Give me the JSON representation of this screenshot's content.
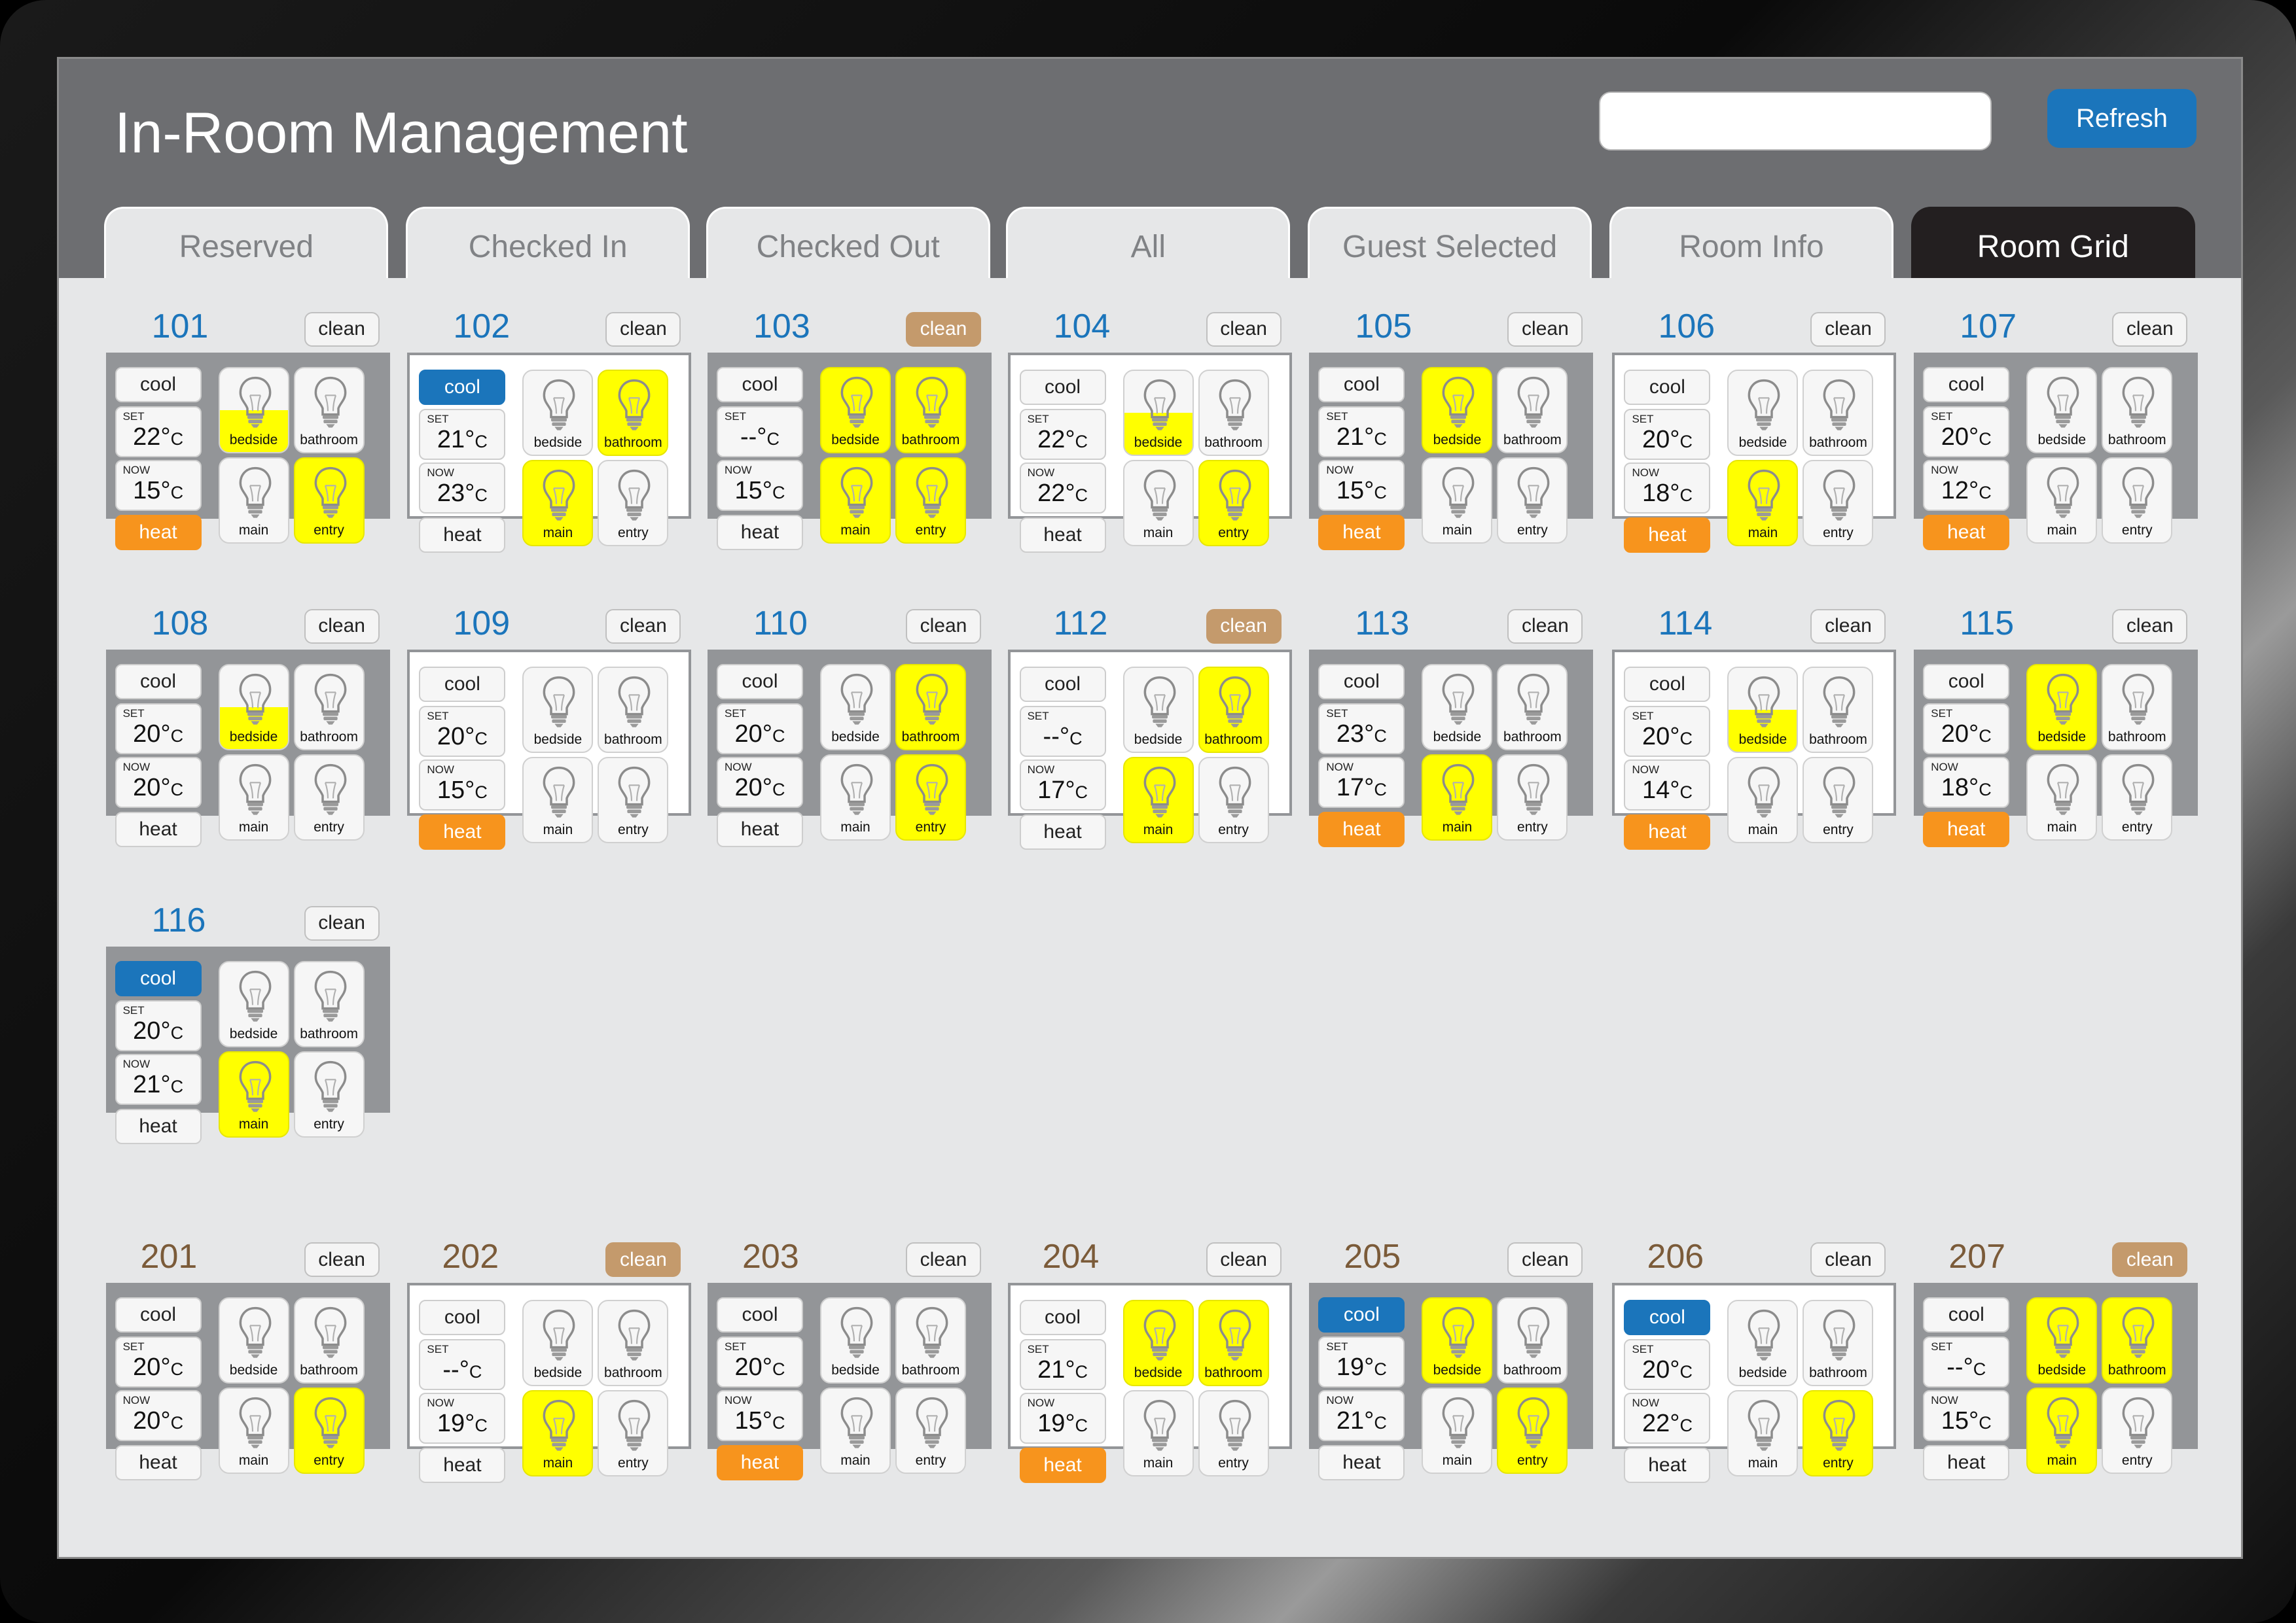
{
  "header": {
    "title": "In-Room Management",
    "search": {
      "value": "",
      "placeholder": ""
    },
    "refresh_label": "Refresh"
  },
  "tabs": [
    {
      "label": "Reserved",
      "active": false
    },
    {
      "label": "Checked In",
      "active": false
    },
    {
      "label": "Checked Out",
      "active": false
    },
    {
      "label": "All",
      "active": false
    },
    {
      "label": "Guest Selected",
      "active": false
    },
    {
      "label": "Room Info",
      "active": false
    },
    {
      "label": "Room Grid",
      "active": true
    }
  ],
  "labels": {
    "clean": "clean",
    "cool": "cool",
    "heat": "heat",
    "set": "SET",
    "now": "NOW",
    "deg": "°",
    "unit": "C",
    "lights": [
      "bedside",
      "bathroom",
      "main",
      "entry"
    ]
  },
  "colors": {
    "header": "#6d6e71",
    "accent_blue": "#1b75bb",
    "heat_orange": "#f7941d",
    "light_on": "#ffff00",
    "clean_active": "#c49a6c",
    "floor2_number": "#7b5b39"
  },
  "icons": {
    "light": "lightbulb-icon"
  },
  "rooms": [
    {
      "number": "101",
      "clean": false,
      "selected": false,
      "cool": false,
      "heat": true,
      "set": "22",
      "now": "15",
      "lights": [
        "half",
        "off",
        "off",
        "on"
      ]
    },
    {
      "number": "102",
      "clean": false,
      "selected": true,
      "cool": true,
      "heat": false,
      "set": "21",
      "now": "23",
      "lights": [
        "off",
        "on",
        "on",
        "off"
      ]
    },
    {
      "number": "103",
      "clean": true,
      "selected": false,
      "cool": false,
      "heat": false,
      "set": "--",
      "now": "15",
      "lights": [
        "on",
        "on",
        "on",
        "on"
      ]
    },
    {
      "number": "104",
      "clean": false,
      "selected": true,
      "cool": false,
      "heat": false,
      "set": "22",
      "now": "22",
      "lights": [
        "half",
        "off",
        "off",
        "on"
      ]
    },
    {
      "number": "105",
      "clean": false,
      "selected": false,
      "cool": false,
      "heat": true,
      "set": "21",
      "now": "15",
      "lights": [
        "on",
        "off",
        "off",
        "off"
      ]
    },
    {
      "number": "106",
      "clean": false,
      "selected": true,
      "cool": false,
      "heat": true,
      "set": "20",
      "now": "18",
      "lights": [
        "off",
        "off",
        "on",
        "off"
      ]
    },
    {
      "number": "107",
      "clean": false,
      "selected": false,
      "cool": false,
      "heat": true,
      "set": "20",
      "now": "12",
      "lights": [
        "off",
        "off",
        "off",
        "off"
      ]
    },
    {
      "number": "108",
      "clean": false,
      "selected": false,
      "cool": false,
      "heat": false,
      "set": "20",
      "now": "20",
      "lights": [
        "half",
        "off",
        "off",
        "off"
      ]
    },
    {
      "number": "109",
      "clean": false,
      "selected": true,
      "cool": false,
      "heat": true,
      "set": "20",
      "now": "15",
      "lights": [
        "off",
        "off",
        "off",
        "off"
      ]
    },
    {
      "number": "110",
      "clean": false,
      "selected": false,
      "cool": false,
      "heat": false,
      "set": "20",
      "now": "20",
      "lights": [
        "off",
        "on",
        "off",
        "on"
      ]
    },
    {
      "number": "112",
      "clean": true,
      "selected": true,
      "cool": false,
      "heat": false,
      "set": "--",
      "now": "17",
      "lights": [
        "off",
        "on",
        "on",
        "off"
      ]
    },
    {
      "number": "113",
      "clean": false,
      "selected": false,
      "cool": false,
      "heat": true,
      "set": "23",
      "now": "17",
      "lights": [
        "off",
        "off",
        "on",
        "off"
      ]
    },
    {
      "number": "114",
      "clean": false,
      "selected": true,
      "cool": false,
      "heat": true,
      "set": "20",
      "now": "14",
      "lights": [
        "half",
        "off",
        "off",
        "off"
      ]
    },
    {
      "number": "115",
      "clean": false,
      "selected": false,
      "cool": false,
      "heat": true,
      "set": "20",
      "now": "18",
      "lights": [
        "on",
        "off",
        "off",
        "off"
      ]
    },
    {
      "number": "116",
      "clean": false,
      "selected": false,
      "cool": true,
      "heat": false,
      "set": "20",
      "now": "21",
      "lights": [
        "off",
        "off",
        "on",
        "off"
      ]
    },
    {
      "number": "201",
      "clean": false,
      "selected": false,
      "cool": false,
      "heat": false,
      "set": "20",
      "now": "20",
      "lights": [
        "off",
        "off",
        "off",
        "on"
      ]
    },
    {
      "number": "202",
      "clean": true,
      "selected": true,
      "cool": false,
      "heat": false,
      "set": "--",
      "now": "19",
      "lights": [
        "off",
        "off",
        "on",
        "off"
      ]
    },
    {
      "number": "203",
      "clean": false,
      "selected": false,
      "cool": false,
      "heat": true,
      "set": "20",
      "now": "15",
      "lights": [
        "off",
        "off",
        "off",
        "off"
      ]
    },
    {
      "number": "204",
      "clean": false,
      "selected": true,
      "cool": false,
      "heat": true,
      "set": "21",
      "now": "19",
      "lights": [
        "on",
        "on",
        "off",
        "off"
      ]
    },
    {
      "number": "205",
      "clean": false,
      "selected": false,
      "cool": true,
      "heat": false,
      "set": "19",
      "now": "21",
      "lights": [
        "on",
        "off",
        "off",
        "on"
      ]
    },
    {
      "number": "206",
      "clean": false,
      "selected": true,
      "cool": true,
      "heat": false,
      "set": "20",
      "now": "22",
      "lights": [
        "off",
        "off",
        "off",
        "on"
      ]
    },
    {
      "number": "207",
      "clean": true,
      "selected": false,
      "cool": false,
      "heat": false,
      "set": "--",
      "now": "15",
      "lights": [
        "on",
        "on",
        "on",
        "off"
      ]
    }
  ]
}
